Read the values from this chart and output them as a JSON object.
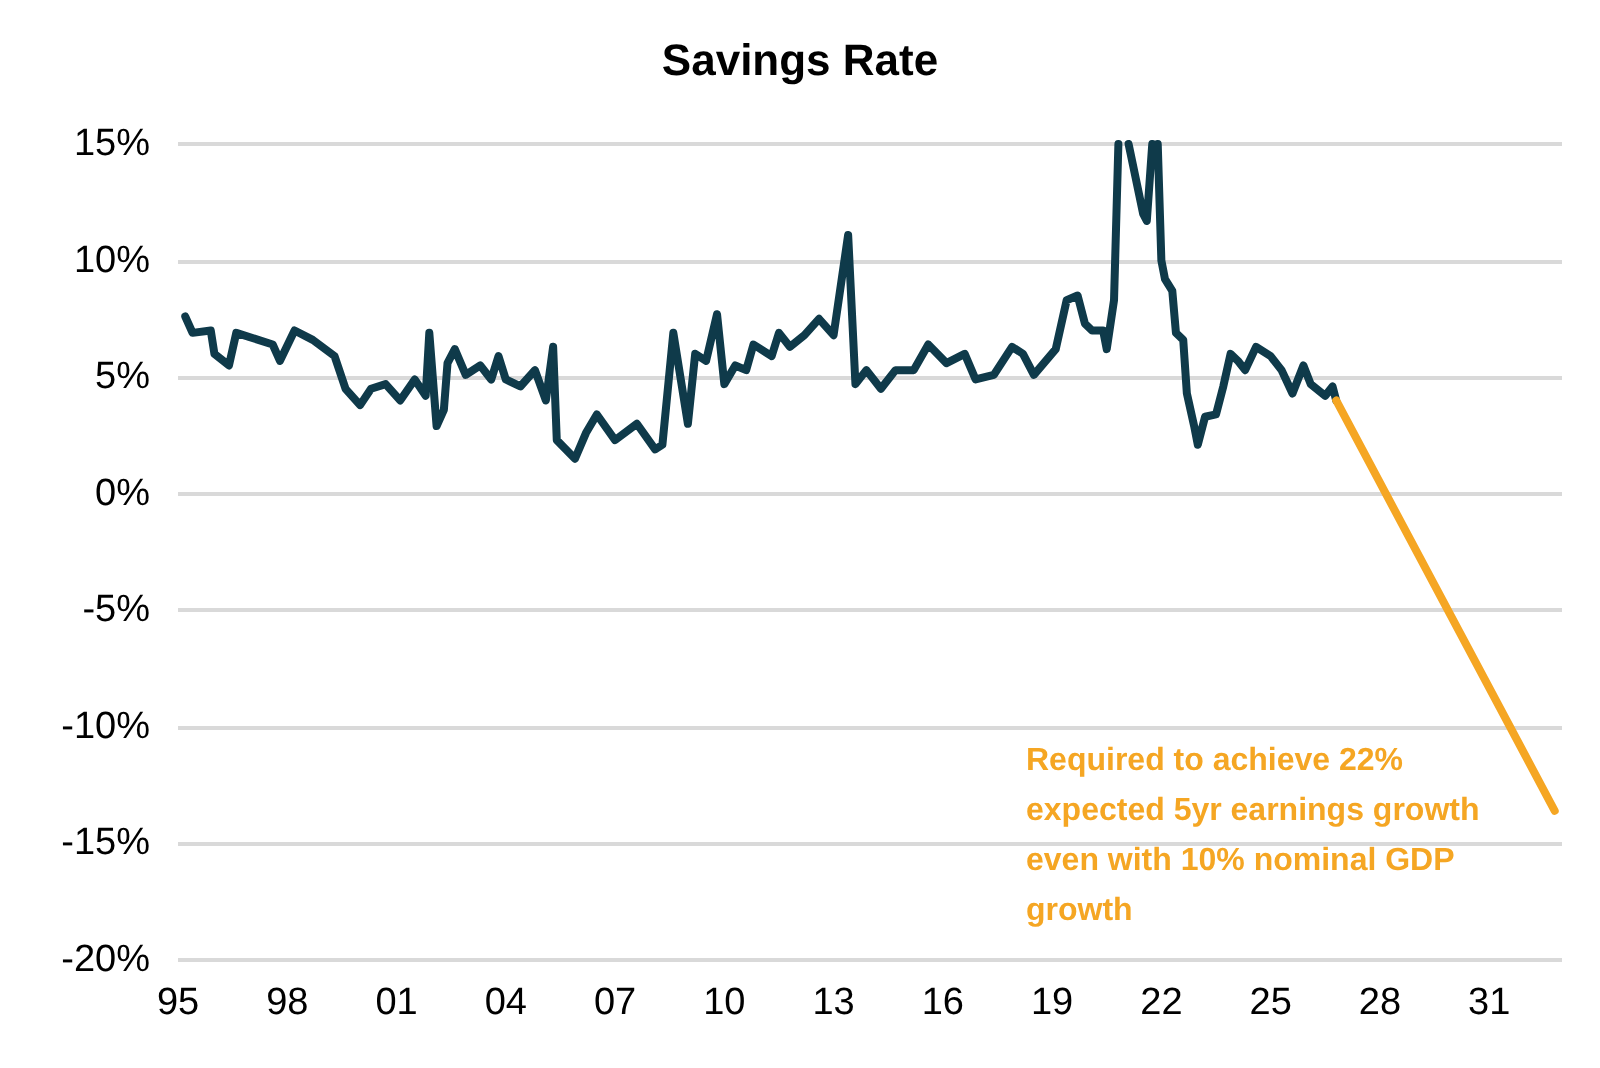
{
  "chart_data": {
    "type": "line",
    "title": "Savings Rate",
    "xlim": [
      1995,
      2033
    ],
    "xticks": [
      {
        "value": 1995,
        "label": "95"
      },
      {
        "value": 1998,
        "label": "98"
      },
      {
        "value": 2001,
        "label": "01"
      },
      {
        "value": 2004,
        "label": "04"
      },
      {
        "value": 2007,
        "label": "07"
      },
      {
        "value": 2010,
        "label": "10"
      },
      {
        "value": 2013,
        "label": "13"
      },
      {
        "value": 2016,
        "label": "16"
      },
      {
        "value": 2019,
        "label": "19"
      },
      {
        "value": 2022,
        "label": "22"
      },
      {
        "value": 2025,
        "label": "25"
      },
      {
        "value": 2028,
        "label": "28"
      },
      {
        "value": 2031,
        "label": "31"
      }
    ],
    "ylim": [
      -20,
      15
    ],
    "yticks": [
      {
        "value": -20,
        "label": "-20%"
      },
      {
        "value": -15,
        "label": "-15%"
      },
      {
        "value": -10,
        "label": "-10%"
      },
      {
        "value": -5,
        "label": "-5%"
      },
      {
        "value": 0,
        "label": "0%"
      },
      {
        "value": 5,
        "label": "5%"
      },
      {
        "value": 10,
        "label": "10%"
      },
      {
        "value": 15,
        "label": "15%"
      }
    ],
    "grid": "y",
    "marker": "none",
    "line_style": "solid",
    "series": [
      {
        "color": "#0f3a4a",
        "x": [
          1995.2,
          1995.4,
          1995.9,
          1996.0,
          1996.4,
          1996.6,
          1997.6,
          1997.8,
          1998.2,
          1998.7,
          1999.3,
          1999.6,
          2000.0,
          2000.3,
          2000.7,
          2001.1,
          2001.5,
          2001.8,
          2001.9,
          2002.1,
          2002.3,
          2002.4,
          2002.6,
          2002.9,
          2003.3,
          2003.6,
          2003.8,
          2004.0,
          2004.4,
          2004.8,
          2005.1,
          2005.3,
          2005.4,
          2005.9,
          2006.2,
          2006.5,
          2007.0,
          2007.6,
          2008.1,
          2008.3,
          2008.6,
          2009.0,
          2009.2,
          2009.5,
          2009.8,
          2010.0,
          2010.3,
          2010.6,
          2010.8,
          2011.3,
          2011.5,
          2011.8,
          2012.2,
          2012.6,
          2013.0,
          2013.4,
          2013.6,
          2013.9,
          2014.3,
          2014.7,
          2015.2,
          2015.6,
          2016.1,
          2016.6,
          2016.9,
          2017.4,
          2017.9,
          2018.2,
          2018.5,
          2019.1,
          2019.4,
          2019.7,
          2019.9,
          2020.1,
          2020.4,
          2020.5,
          2020.7,
          2020.82,
          2020.95,
          2021.1,
          2021.3,
          2021.5,
          2021.6,
          2021.75,
          2021.85,
          2021.9,
          2022.0,
          2022.1,
          2022.3,
          2022.4,
          2022.6,
          2022.7,
          2022.9,
          2023.0,
          2023.2,
          2023.5,
          2023.7,
          2023.9,
          2024.1,
          2024.3,
          2024.6,
          2025.0,
          2025.3,
          2025.6,
          2025.9,
          2026.1,
          2026.5,
          2026.7,
          2026.8
        ],
        "values": [
          7.6,
          6.9,
          7.0,
          6.0,
          5.5,
          6.9,
          6.4,
          5.7,
          7.0,
          6.6,
          5.9,
          4.5,
          3.8,
          4.5,
          4.7,
          4.0,
          4.9,
          4.2,
          6.9,
          2.9,
          3.6,
          5.6,
          6.2,
          5.1,
          5.5,
          4.9,
          5.9,
          4.9,
          4.6,
          5.3,
          4.0,
          6.3,
          2.3,
          1.5,
          2.6,
          3.4,
          2.3,
          3.0,
          1.9,
          2.1,
          6.9,
          3.0,
          6.0,
          5.7,
          7.7,
          4.7,
          5.5,
          5.3,
          6.4,
          5.9,
          6.9,
          6.3,
          6.8,
          7.5,
          6.8,
          11.1,
          4.7,
          5.3,
          4.5,
          5.3,
          5.3,
          6.4,
          5.6,
          6.0,
          4.9,
          5.1,
          6.3,
          6.0,
          5.1,
          6.2,
          8.3,
          8.5,
          7.3,
          7.0,
          7.0,
          6.2,
          8.3,
          15,
          null,
          15,
          13.5,
          12.0,
          11.7,
          15,
          null,
          15,
          10.0,
          9.2,
          8.7,
          6.9,
          6.6,
          4.3,
          2.9,
          2.1,
          3.3,
          3.4,
          4.6,
          6.0,
          5.7,
          5.3,
          6.3,
          5.9,
          5.3,
          4.3,
          5.5,
          4.7,
          4.2,
          4.6,
          4.0
        ]
      },
      {
        "color": "#f5a623",
        "x": [
          2026.8,
          2032.8
        ],
        "values": [
          4.0,
          -13.6
        ]
      }
    ],
    "annotations": [
      "Required to achieve 22% expected 5yr earnings growth even with 10% nominal GDP growth"
    ]
  }
}
